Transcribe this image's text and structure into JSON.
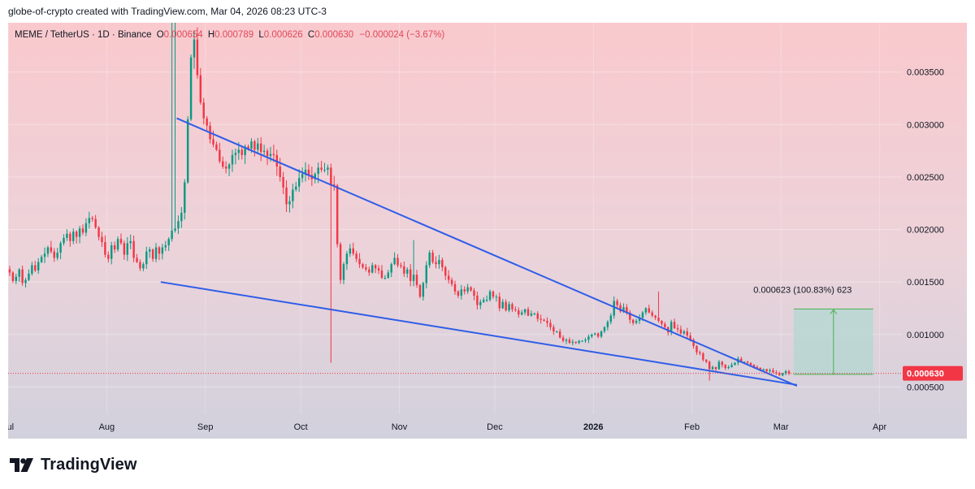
{
  "header": {
    "text": "globe-of-crypto created with TradingView.com, Mar 04, 2026 08:23 UTC-3"
  },
  "legend": {
    "symbol": "MEME / TetherUS · 1D · Binance",
    "o_label": "O",
    "o_value": "0.000654",
    "h_label": "H",
    "h_value": "0.000789",
    "l_label": "L",
    "l_value": "0.000626",
    "c_label": "C",
    "c_value": "0.000630",
    "change": "−0.000024 (−3.67%)"
  },
  "footer": {
    "brand": "TradingView"
  },
  "colors": {
    "up": "#089981",
    "down": "#f23645",
    "trendline": "#2f5de8",
    "price_label_bg": "#f23645",
    "measure_fill": "#b7d7d2",
    "measure_line": "#4caf50"
  },
  "chart_data": {
    "type": "candlestick",
    "symbol": "MEME / TetherUS",
    "interval": "1D",
    "exchange": "Binance",
    "ylim": [
      0.00024,
      0.00397
    ],
    "yticks": [
      "0.003500",
      "0.003000",
      "0.002500",
      "0.002000",
      "0.001500",
      "0.001000",
      "0.000500"
    ],
    "ytick_values": [
      0.0035,
      0.003,
      0.0025,
      0.002,
      0.0015,
      0.001,
      0.0005
    ],
    "x_start": "2025-07-01",
    "x_end": "2026-04-08",
    "x_labels": [
      {
        "date": "2025-07-01",
        "label": "Jul",
        "bold": false
      },
      {
        "date": "2025-08-01",
        "label": "Aug",
        "bold": false
      },
      {
        "date": "2025-09-01",
        "label": "Sep",
        "bold": false
      },
      {
        "date": "2025-10-01",
        "label": "Oct",
        "bold": false
      },
      {
        "date": "2025-11-01",
        "label": "Nov",
        "bold": false
      },
      {
        "date": "2025-12-01",
        "label": "Dec",
        "bold": false
      },
      {
        "date": "2026-01-01",
        "label": "2026",
        "bold": true
      },
      {
        "date": "2026-02-01",
        "label": "Feb",
        "bold": false
      },
      {
        "date": "2026-03-01",
        "label": "Mar",
        "bold": false
      },
      {
        "date": "2026-04-01",
        "label": "Apr",
        "bold": false
      }
    ],
    "last_price": 0.00063,
    "last_price_label": "0.000630",
    "trendlines": [
      {
        "name": "upper",
        "start": [
          "2025-08-23",
          0.00306
        ],
        "end": [
          "2026-03-06",
          0.00051
        ]
      },
      {
        "name": "lower",
        "start": [
          "2025-08-18",
          0.0015
        ],
        "end": [
          "2026-03-06",
          0.00052
        ]
      }
    ],
    "measure": {
      "start_date": "2026-03-05",
      "end_date": "2026-03-30",
      "from": 0.00062,
      "to": 0.001243,
      "label": "0.000623 (100.83%) 623"
    },
    "closes": [
      0.00159,
      0.00151,
      0.00155,
      0.00162,
      0.00149,
      0.00152,
      0.00158,
      0.00166,
      0.00161,
      0.00169,
      0.00174,
      0.00177,
      0.00183,
      0.00179,
      0.00173,
      0.00178,
      0.00187,
      0.00192,
      0.00196,
      0.00189,
      0.00198,
      0.00193,
      0.00201,
      0.00197,
      0.00206,
      0.00211,
      0.0021,
      0.00202,
      0.00193,
      0.00188,
      0.00176,
      0.00172,
      0.00185,
      0.00181,
      0.00191,
      0.00187,
      0.00176,
      0.00187,
      0.00189,
      0.00173,
      0.00169,
      0.00163,
      0.00167,
      0.00179,
      0.00181,
      0.00172,
      0.00183,
      0.00177,
      0.00183,
      0.00185,
      0.00191,
      0.00199,
      0.00201,
      0.00208,
      0.00216,
      0.00245,
      0.00305,
      0.00364,
      0.00381,
      0.00347,
      0.00321,
      0.00306,
      0.00299,
      0.00286,
      0.00281,
      0.00276,
      0.00265,
      0.0026,
      0.00258,
      0.00262,
      0.00271,
      0.00273,
      0.00276,
      0.00271,
      0.00279,
      0.00277,
      0.00284,
      0.00276,
      0.00282,
      0.00274,
      0.00275,
      0.0027,
      0.00272,
      0.00271,
      0.0026,
      0.0025,
      0.0024,
      0.00224,
      0.00227,
      0.00238,
      0.00241,
      0.00249,
      0.00253,
      0.00257,
      0.00252,
      0.00248,
      0.00253,
      0.00259,
      0.00257,
      0.00257,
      0.00259,
      0.00243,
      0.00242,
      0.00186,
      0.00152,
      0.00167,
      0.00177,
      0.00182,
      0.00177,
      0.00172,
      0.00167,
      0.00164,
      0.00162,
      0.00159,
      0.00166,
      0.00163,
      0.00161,
      0.00154,
      0.00154,
      0.00159,
      0.00167,
      0.00173,
      0.00166,
      0.00165,
      0.00158,
      0.00162,
      0.00151,
      0.00157,
      0.00147,
      0.00136,
      0.00149,
      0.00166,
      0.00178,
      0.00169,
      0.00167,
      0.00171,
      0.00164,
      0.00156,
      0.00152,
      0.00148,
      0.00141,
      0.00137,
      0.00143,
      0.00141,
      0.00145,
      0.00142,
      0.00137,
      0.00128,
      0.00131,
      0.00133,
      0.00133,
      0.00141,
      0.00136,
      0.00136,
      0.00125,
      0.00131,
      0.00123,
      0.00129,
      0.00124,
      0.00123,
      0.00119,
      0.00121,
      0.00124,
      0.00118,
      0.0012,
      0.0012,
      0.00115,
      0.00114,
      0.00113,
      0.00111,
      0.00107,
      0.00103,
      0.00103,
      0.00097,
      0.00094,
      0.00095,
      0.00092,
      0.00093,
      0.00092,
      0.00094,
      0.00094,
      0.00095,
      0.00098,
      0.001,
      0.00101,
      0.00098,
      0.00103,
      0.00107,
      0.00112,
      0.00118,
      0.00132,
      0.00128,
      0.00122,
      0.00126,
      0.00121,
      0.00114,
      0.00111,
      0.00113,
      0.00116,
      0.00121,
      0.00125,
      0.00121,
      0.00118,
      0.00116,
      0.00113,
      0.0011,
      0.00107,
      0.00102,
      0.00112,
      0.00106,
      0.00105,
      0.00101,
      0.00103,
      0.00099,
      0.00095,
      0.00089,
      0.00083,
      0.00082,
      0.00076,
      0.00074,
      0.00067,
      0.00069,
      0.00067,
      0.00074,
      0.00071,
      0.00068,
      0.00069,
      0.00071,
      0.00073,
      0.00077,
      0.00074,
      0.00074,
      0.00073,
      0.00071,
      0.00069,
      0.00068,
      0.00066,
      0.00067,
      0.00065,
      0.00066,
      0.00064,
      0.00063,
      0.00061,
      0.00063,
      0.00065,
      0.00063
    ],
    "range_lows": [
      0.00147,
      0.00073,
      0.00056
    ],
    "range_highs": [
      0.00416,
      0.0019,
      0.00141
    ]
  }
}
